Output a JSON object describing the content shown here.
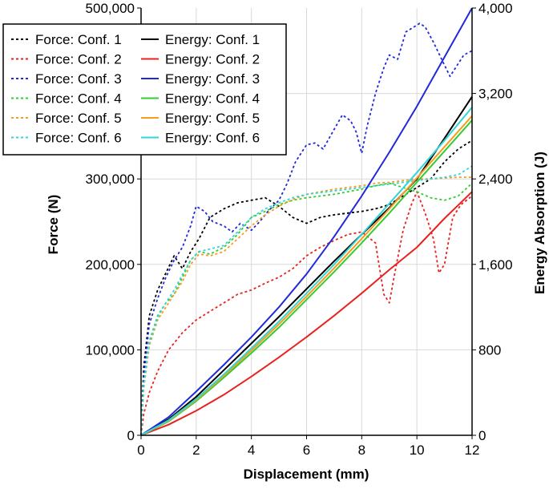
{
  "chart_data": {
    "type": "line",
    "title": "",
    "xlabel": "Displacement (mm)",
    "ylabel_left": "Force (N)",
    "ylabel_right": "Energy Absorption (J)",
    "xlim": [
      0,
      12
    ],
    "ylim_left": [
      0,
      500000
    ],
    "ylim_right": [
      0,
      4000
    ],
    "x_ticks": [
      0,
      2,
      4,
      6,
      8,
      10,
      12
    ],
    "x_tick_labels": [
      "0",
      "2",
      "4",
      "6",
      "8",
      "10",
      "12"
    ],
    "y_left_ticks": [
      0,
      100000,
      200000,
      300000,
      400000,
      500000
    ],
    "y_left_tick_labels": [
      "0",
      "100,000",
      "200,000",
      "300,000",
      "",
      "500,000"
    ],
    "y_right_ticks": [
      0,
      800,
      1600,
      2400,
      3200,
      4000
    ],
    "y_right_tick_labels": [
      "0",
      "800",
      "1,600",
      "2,400",
      "3,200",
      "4,000"
    ],
    "grid": true,
    "legend_position": "top-left",
    "series": [
      {
        "name": "Force: Conf. 1",
        "axis": "left",
        "style": "dashed",
        "color": "#000000",
        "x": [
          0,
          0.1,
          0.3,
          0.6,
          0.9,
          1.2,
          1.5,
          1.8,
          2.1,
          2.5,
          3.0,
          3.5,
          4.0,
          4.5,
          5.0,
          5.5,
          6.0,
          6.5,
          7.0,
          7.5,
          8.0,
          8.5,
          9.0,
          9.5,
          10.0,
          10.5,
          11.0,
          11.5,
          12.0
        ],
        "y": [
          0,
          80000,
          140000,
          170000,
          190000,
          210000,
          195000,
          215000,
          230000,
          255000,
          265000,
          272000,
          275000,
          278000,
          268000,
          255000,
          248000,
          255000,
          258000,
          260000,
          262000,
          265000,
          270000,
          280000,
          290000,
          300000,
          320000,
          335000,
          345000
        ]
      },
      {
        "name": "Force: Conf. 2",
        "axis": "left",
        "style": "dashed",
        "color": "#e8231f",
        "x": [
          0,
          0.1,
          0.3,
          0.6,
          1.0,
          1.5,
          2.0,
          2.5,
          3.0,
          3.5,
          4.0,
          4.5,
          5.0,
          5.5,
          6.0,
          6.5,
          7.0,
          7.5,
          8.0,
          8.5,
          8.8,
          9.0,
          9.2,
          9.5,
          9.8,
          10.0,
          10.3,
          10.6,
          10.8,
          11.0,
          11.3,
          11.6,
          12.0
        ],
        "y": [
          0,
          25000,
          50000,
          75000,
          100000,
          120000,
          135000,
          145000,
          155000,
          165000,
          170000,
          178000,
          185000,
          195000,
          210000,
          220000,
          228000,
          235000,
          238000,
          225000,
          165000,
          155000,
          190000,
          240000,
          270000,
          285000,
          260000,
          230000,
          190000,
          200000,
          255000,
          270000,
          280000
        ]
      },
      {
        "name": "Force: Conf. 3",
        "axis": "left",
        "style": "dashed",
        "color": "#2229d8",
        "x": [
          0,
          0.1,
          0.3,
          0.6,
          0.9,
          1.2,
          1.5,
          1.8,
          2.0,
          2.3,
          2.6,
          3.0,
          3.3,
          3.6,
          4.0,
          4.3,
          4.6,
          5.0,
          5.3,
          5.6,
          6.0,
          6.3,
          6.6,
          7.0,
          7.3,
          7.6,
          7.8,
          8.0,
          8.2,
          8.5,
          8.8,
          9.0,
          9.3,
          9.6,
          9.9,
          10.1,
          10.3,
          10.6,
          10.9,
          11.2,
          11.5,
          11.7,
          12.0
        ],
        "y": [
          0,
          70000,
          130000,
          160000,
          185000,
          205000,
          220000,
          245000,
          268000,
          262000,
          250000,
          245000,
          238000,
          248000,
          240000,
          250000,
          262000,
          275000,
          295000,
          320000,
          340000,
          342000,
          335000,
          358000,
          375000,
          368000,
          355000,
          330000,
          362000,
          400000,
          430000,
          445000,
          440000,
          472000,
          478000,
          482000,
          478000,
          460000,
          440000,
          420000,
          435000,
          445000,
          450000
        ]
      },
      {
        "name": "Force: Conf. 4",
        "axis": "left",
        "style": "dashed",
        "color": "#33cc33",
        "x": [
          0,
          0.1,
          0.3,
          0.6,
          0.9,
          1.2,
          1.5,
          1.8,
          2.1,
          2.5,
          3.0,
          3.5,
          4.0,
          4.5,
          5.0,
          5.5,
          6.0,
          6.5,
          7.0,
          7.5,
          8.0,
          8.5,
          9.0,
          9.5,
          10.0,
          10.5,
          11.0,
          11.5,
          12.0
        ],
        "y": [
          0,
          60000,
          110000,
          140000,
          155000,
          165000,
          185000,
          205000,
          215000,
          212000,
          220000,
          235000,
          255000,
          262000,
          270000,
          275000,
          278000,
          280000,
          282000,
          285000,
          288000,
          292000,
          295000,
          290000,
          285000,
          278000,
          275000,
          280000,
          295000
        ]
      },
      {
        "name": "Force: Conf. 5",
        "axis": "left",
        "style": "dashed",
        "color": "#f59d1f",
        "x": [
          0,
          0.1,
          0.3,
          0.6,
          0.9,
          1.2,
          1.5,
          1.8,
          2.1,
          2.5,
          3.0,
          3.5,
          4.0,
          4.5,
          5.0,
          5.5,
          6.0,
          6.5,
          7.0,
          7.5,
          8.0,
          8.5,
          9.0,
          9.5,
          10.0,
          10.5,
          11.0,
          11.5,
          12.0
        ],
        "y": [
          0,
          55000,
          105000,
          135000,
          150000,
          165000,
          180000,
          200000,
          212000,
          210000,
          215000,
          230000,
          245000,
          258000,
          268000,
          276000,
          282000,
          285000,
          288000,
          290000,
          292000,
          295000,
          296000,
          298000,
          300000,
          300000,
          301000,
          302000,
          302000
        ]
      },
      {
        "name": "Force: Conf. 6",
        "axis": "left",
        "style": "dashed",
        "color": "#33d6d6",
        "x": [
          0,
          0.1,
          0.3,
          0.6,
          0.9,
          1.2,
          1.5,
          1.8,
          2.1,
          2.5,
          3.0,
          3.5,
          4.0,
          4.5,
          5.0,
          5.5,
          6.0,
          6.5,
          7.0,
          7.5,
          8.0,
          8.5,
          9.0,
          9.5,
          10.0,
          10.5,
          11.0,
          11.5,
          12.0
        ],
        "y": [
          0,
          58000,
          108000,
          138000,
          155000,
          170000,
          188000,
          205000,
          215000,
          218000,
          222000,
          238000,
          255000,
          265000,
          272000,
          278000,
          282000,
          284000,
          286000,
          288000,
          290000,
          292000,
          294000,
          296000,
          298000,
          300000,
          302000,
          305000,
          315000
        ]
      },
      {
        "name": "Energy: Conf. 1",
        "axis": "right",
        "style": "solid",
        "color": "#000000",
        "x": [
          0,
          1,
          2,
          3,
          4,
          5,
          6,
          7,
          8,
          9,
          10,
          11,
          12
        ],
        "y": [
          0,
          150,
          360,
          610,
          860,
          1110,
          1370,
          1630,
          1880,
          2130,
          2400,
          2780,
          3170
        ]
      },
      {
        "name": "Energy: Conf. 2",
        "axis": "right",
        "style": "solid",
        "color": "#e8231f",
        "x": [
          0,
          1,
          2,
          3,
          4,
          5,
          6,
          7,
          8,
          9,
          10,
          11,
          12
        ],
        "y": [
          0,
          100,
          230,
          380,
          550,
          730,
          920,
          1120,
          1330,
          1550,
          1760,
          2030,
          2280
        ]
      },
      {
        "name": "Energy: Conf. 3",
        "axis": "right",
        "style": "solid",
        "color": "#2229d8",
        "x": [
          0,
          1,
          2,
          3,
          4,
          5,
          6,
          7,
          8,
          9,
          10,
          11,
          12
        ],
        "y": [
          0,
          170,
          410,
          660,
          920,
          1200,
          1510,
          1860,
          2240,
          2650,
          3080,
          3540,
          4000
        ]
      },
      {
        "name": "Energy: Conf. 4",
        "axis": "right",
        "style": "solid",
        "color": "#33cc33",
        "x": [
          0,
          1,
          2,
          3,
          4,
          5,
          6,
          7,
          8,
          9,
          10,
          11,
          12
        ],
        "y": [
          0,
          130,
          320,
          540,
          770,
          1010,
          1270,
          1530,
          1800,
          2080,
          2370,
          2660,
          2950
        ]
      },
      {
        "name": "Energy: Conf. 5",
        "axis": "right",
        "style": "solid",
        "color": "#f59d1f",
        "x": [
          0,
          1,
          2,
          3,
          4,
          5,
          6,
          7,
          8,
          9,
          10,
          11,
          12
        ],
        "y": [
          0,
          135,
          330,
          555,
          795,
          1040,
          1300,
          1565,
          1840,
          2120,
          2410,
          2700,
          2990
        ]
      },
      {
        "name": "Energy: Conf. 6",
        "axis": "right",
        "style": "solid",
        "color": "#33d6d6",
        "x": [
          0,
          1,
          2,
          3,
          4,
          5,
          6,
          7,
          8,
          9,
          10,
          11,
          12
        ],
        "y": [
          0,
          140,
          340,
          570,
          815,
          1065,
          1330,
          1600,
          1880,
          2170,
          2460,
          2760,
          3070
        ]
      }
    ]
  }
}
